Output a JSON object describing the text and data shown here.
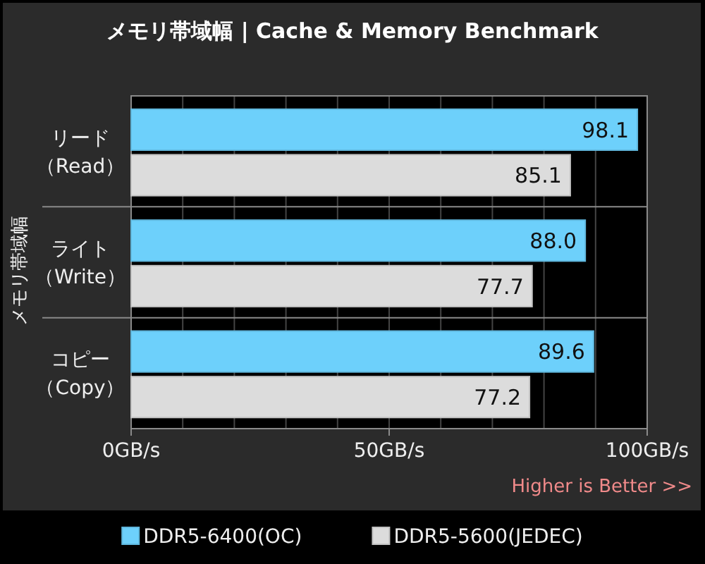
{
  "chart_data": {
    "type": "bar",
    "orientation": "horizontal",
    "title": "メモリ帯域幅 | Cache & Memory Benchmark",
    "ylabel": "メモリ帯域幅",
    "categories": [
      "リード（Read）",
      "ライト（Write）",
      "コピー（Copy）"
    ],
    "series": [
      {
        "name": "DDR5-6400(OC)",
        "color": "#6dd0fb",
        "values": [
          98.1,
          88.0,
          89.6
        ],
        "value_labels": [
          "98.1",
          "88.0",
          "89.6"
        ]
      },
      {
        "name": "DDR5-5600(JEDEC)",
        "color": "#dcdcdc",
        "values": [
          85.1,
          77.7,
          77.2
        ],
        "value_labels": [
          "85.1",
          "77.7",
          "77.2"
        ]
      }
    ],
    "xlim": [
      0,
      100
    ],
    "xticks": [
      {
        "value": 0,
        "label": "0GB/s"
      },
      {
        "value": 10,
        "label": null
      },
      {
        "value": 20,
        "label": null
      },
      {
        "value": 30,
        "label": null
      },
      {
        "value": 40,
        "label": null
      },
      {
        "value": 50,
        "label": "50GB/s"
      },
      {
        "value": 60,
        "label": null
      },
      {
        "value": 70,
        "label": null
      },
      {
        "value": 80,
        "label": null
      },
      {
        "value": 90,
        "label": null
      },
      {
        "value": 100,
        "label": "100GB/s"
      }
    ],
    "grid": "x",
    "legend": "bottom",
    "annotations": [
      "Higher is Better >>"
    ]
  }
}
